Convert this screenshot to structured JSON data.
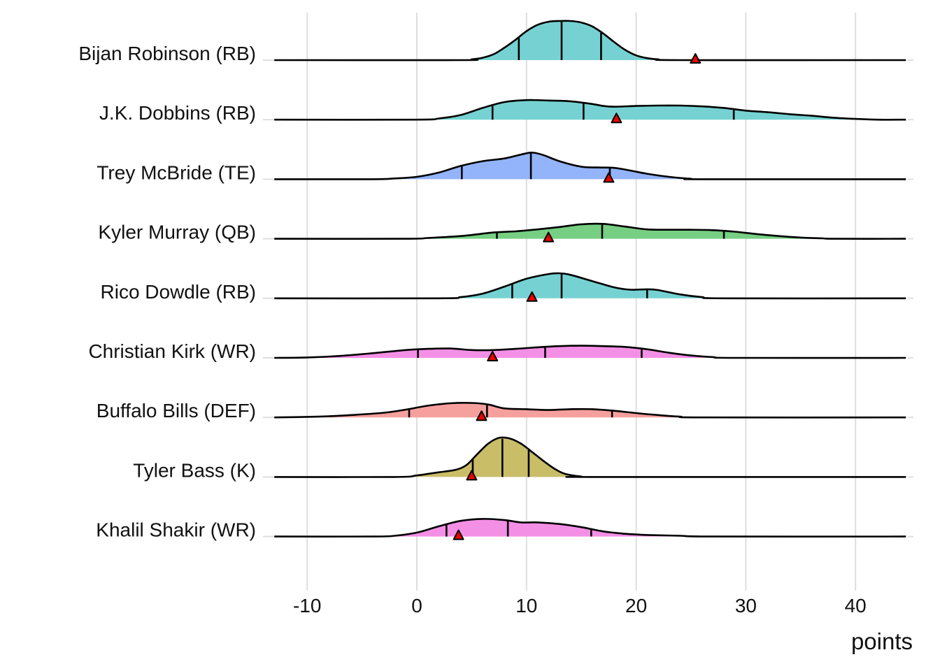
{
  "chart_data": {
    "type": "ridgeline",
    "title": "",
    "xlabel": "points",
    "ylabel": "",
    "xlim": [
      -13,
      44.6
    ],
    "x_ticks": [
      -10,
      0,
      10,
      20,
      30,
      40
    ],
    "x_tick_labels": [
      "-10",
      "0",
      "10",
      "20",
      "30",
      "40"
    ],
    "grid": true,
    "legend": "none",
    "marker": "red triangle (actual points)",
    "quantile_lines": "10th / 50th / 90th percentile",
    "categories": [
      "Bijan Robinson (RB)",
      "J.K. Dobbins (RB)",
      "Trey McBride (TE)",
      "Kyler Murray (QB)",
      "Rico Dowdle (RB)",
      "Christian Kirk (WR)",
      "Buffalo Bills (DEF)",
      "Tyler Bass (K)",
      "Khalil Shakir (WR)"
    ],
    "series": [
      {
        "name": "Bijan Robinson (RB)",
        "position": "RB",
        "color": "#76d2d2",
        "quantiles": [
          9.3,
          13.2,
          16.8
        ],
        "actual": 25.4,
        "density": [
          [
            -13,
            0
          ],
          [
            4,
            0
          ],
          [
            5,
            0.02
          ],
          [
            6,
            0.06
          ],
          [
            7,
            0.15
          ],
          [
            8,
            0.32
          ],
          [
            9,
            0.52
          ],
          [
            10,
            0.74
          ],
          [
            11,
            0.9
          ],
          [
            12,
            0.98
          ],
          [
            13,
            1.0
          ],
          [
            14,
            1.0
          ],
          [
            15,
            0.96
          ],
          [
            16,
            0.86
          ],
          [
            17,
            0.68
          ],
          [
            18,
            0.46
          ],
          [
            19,
            0.26
          ],
          [
            20,
            0.12
          ],
          [
            21,
            0.05
          ],
          [
            22,
            0.02
          ],
          [
            24,
            0
          ],
          [
            44.6,
            0
          ]
        ]
      },
      {
        "name": "J.K. Dobbins (RB)",
        "position": "RB",
        "color": "#76d2d2",
        "quantiles": [
          6.9,
          15.2,
          28.9
        ],
        "actual": 18.2,
        "density": [
          [
            -13,
            0
          ],
          [
            0,
            0.0
          ],
          [
            2,
            0.03
          ],
          [
            4,
            0.12
          ],
          [
            6,
            0.3
          ],
          [
            8,
            0.45
          ],
          [
            10,
            0.5
          ],
          [
            12,
            0.49
          ],
          [
            14,
            0.47
          ],
          [
            16,
            0.4
          ],
          [
            17,
            0.35
          ],
          [
            18,
            0.33
          ],
          [
            20,
            0.35
          ],
          [
            22,
            0.36
          ],
          [
            24,
            0.36
          ],
          [
            26,
            0.34
          ],
          [
            28,
            0.3
          ],
          [
            30,
            0.23
          ],
          [
            32,
            0.19
          ],
          [
            34,
            0.14
          ],
          [
            36,
            0.1
          ],
          [
            38,
            0.05
          ],
          [
            40,
            0.02
          ],
          [
            42,
            0
          ],
          [
            44.6,
            0
          ]
        ]
      },
      {
        "name": "Trey McBride (TE)",
        "position": "TE",
        "color": "#93b4fa",
        "quantiles": [
          4.1,
          10.4,
          17.6
        ],
        "actual": 17.5,
        "density": [
          [
            -13,
            0
          ],
          [
            -4,
            0
          ],
          [
            -2,
            0.02
          ],
          [
            0,
            0.06
          ],
          [
            2,
            0.17
          ],
          [
            4,
            0.34
          ],
          [
            6,
            0.46
          ],
          [
            8,
            0.53
          ],
          [
            9.5,
            0.63
          ],
          [
            10.5,
            0.68
          ],
          [
            11.5,
            0.62
          ],
          [
            13,
            0.46
          ],
          [
            15,
            0.32
          ],
          [
            16.5,
            0.3
          ],
          [
            18,
            0.29
          ],
          [
            19.5,
            0.22
          ],
          [
            21,
            0.14
          ],
          [
            23,
            0.06
          ],
          [
            25,
            0.01
          ],
          [
            26,
            0
          ],
          [
            44.6,
            0
          ]
        ]
      },
      {
        "name": "Kyler Murray (QB)",
        "position": "QB",
        "color": "#76cf82",
        "quantiles": [
          7.3,
          16.9,
          28.0
        ],
        "actual": 12.0,
        "density": [
          [
            -13,
            0
          ],
          [
            -1,
            0
          ],
          [
            1,
            0.02
          ],
          [
            4,
            0.07
          ],
          [
            7,
            0.16
          ],
          [
            9,
            0.19
          ],
          [
            11,
            0.24
          ],
          [
            13,
            0.3
          ],
          [
            15,
            0.37
          ],
          [
            17,
            0.38
          ],
          [
            19,
            0.31
          ],
          [
            21,
            0.24
          ],
          [
            23,
            0.23
          ],
          [
            25,
            0.23
          ],
          [
            27,
            0.22
          ],
          [
            29,
            0.18
          ],
          [
            31,
            0.12
          ],
          [
            33,
            0.07
          ],
          [
            35,
            0.03
          ],
          [
            37,
            0.01
          ],
          [
            38,
            0
          ],
          [
            44.6,
            0
          ]
        ]
      },
      {
        "name": "Rico Dowdle (RB)",
        "position": "RB",
        "color": "#76d2d2",
        "quantiles": [
          8.7,
          13.2,
          21.0
        ],
        "actual": 10.5,
        "density": [
          [
            -13,
            0
          ],
          [
            2,
            0
          ],
          [
            4,
            0.03
          ],
          [
            6,
            0.12
          ],
          [
            8,
            0.3
          ],
          [
            10,
            0.5
          ],
          [
            12,
            0.62
          ],
          [
            13,
            0.64
          ],
          [
            14,
            0.6
          ],
          [
            16,
            0.44
          ],
          [
            18,
            0.28
          ],
          [
            19.5,
            0.22
          ],
          [
            21,
            0.23
          ],
          [
            22,
            0.21
          ],
          [
            24,
            0.1
          ],
          [
            26,
            0.03
          ],
          [
            28,
            0
          ],
          [
            44.6,
            0
          ]
        ]
      },
      {
        "name": "Christian Kirk (WR)",
        "position": "WR",
        "color": "#f48fe6",
        "quantiles": [
          0.1,
          11.7,
          20.5
        ],
        "actual": 6.9,
        "density": [
          [
            -13,
            0
          ],
          [
            -10,
            0.01
          ],
          [
            -7,
            0.05
          ],
          [
            -4,
            0.12
          ],
          [
            -1,
            0.2
          ],
          [
            1,
            0.23
          ],
          [
            3,
            0.24
          ],
          [
            5,
            0.2
          ],
          [
            7,
            0.2
          ],
          [
            9,
            0.23
          ],
          [
            11,
            0.27
          ],
          [
            13,
            0.3
          ],
          [
            15,
            0.31
          ],
          [
            17,
            0.3
          ],
          [
            19,
            0.28
          ],
          [
            21,
            0.22
          ],
          [
            23,
            0.13
          ],
          [
            25,
            0.06
          ],
          [
            27,
            0.02
          ],
          [
            29,
            0
          ],
          [
            44.6,
            0
          ]
        ]
      },
      {
        "name": "Buffalo Bills (DEF)",
        "position": "DEF",
        "color": "#f6a09e",
        "quantiles": [
          -0.7,
          6.4,
          17.8
        ],
        "actual": 5.9,
        "density": [
          [
            -13,
            0
          ],
          [
            -9,
            0.02
          ],
          [
            -6,
            0.06
          ],
          [
            -3,
            0.12
          ],
          [
            -1,
            0.2
          ],
          [
            1,
            0.3
          ],
          [
            3,
            0.36
          ],
          [
            5,
            0.37
          ],
          [
            6.5,
            0.33
          ],
          [
            8,
            0.23
          ],
          [
            10,
            0.21
          ],
          [
            12,
            0.19
          ],
          [
            14,
            0.21
          ],
          [
            16,
            0.21
          ],
          [
            18,
            0.17
          ],
          [
            20,
            0.11
          ],
          [
            22,
            0.06
          ],
          [
            24,
            0.02
          ],
          [
            26,
            0
          ],
          [
            44.6,
            0
          ]
        ]
      },
      {
        "name": "Tyler Bass (K)",
        "position": "K",
        "color": "#cabd68",
        "quantiles": [
          5.1,
          7.8,
          10.2
        ],
        "actual": 5.0,
        "density": [
          [
            -13,
            0
          ],
          [
            -2,
            0
          ],
          [
            0,
            0.04
          ],
          [
            2,
            0.12
          ],
          [
            3.5,
            0.18
          ],
          [
            4.5,
            0.3
          ],
          [
            5.5,
            0.58
          ],
          [
            6.5,
            0.85
          ],
          [
            7.5,
            1.0
          ],
          [
            8.5,
            0.98
          ],
          [
            9.5,
            0.85
          ],
          [
            10.5,
            0.64
          ],
          [
            11.5,
            0.42
          ],
          [
            12.5,
            0.22
          ],
          [
            13.5,
            0.08
          ],
          [
            15,
            0.01
          ],
          [
            16,
            0
          ],
          [
            44.6,
            0
          ]
        ]
      },
      {
        "name": "Khalil Shakir (WR)",
        "position": "WR",
        "color": "#f48fe6",
        "quantiles": [
          2.7,
          8.3,
          15.9
        ],
        "actual": 3.8,
        "density": [
          [
            -13,
            0
          ],
          [
            -4,
            0
          ],
          [
            -2,
            0.02
          ],
          [
            0,
            0.1
          ],
          [
            2,
            0.26
          ],
          [
            4,
            0.4
          ],
          [
            6,
            0.45
          ],
          [
            8,
            0.42
          ],
          [
            9.5,
            0.36
          ],
          [
            11,
            0.36
          ],
          [
            13,
            0.32
          ],
          [
            15,
            0.24
          ],
          [
            17,
            0.13
          ],
          [
            19,
            0.07
          ],
          [
            21,
            0.04
          ],
          [
            24,
            0.02
          ],
          [
            27,
            0
          ],
          [
            44.6,
            0
          ]
        ]
      }
    ]
  }
}
